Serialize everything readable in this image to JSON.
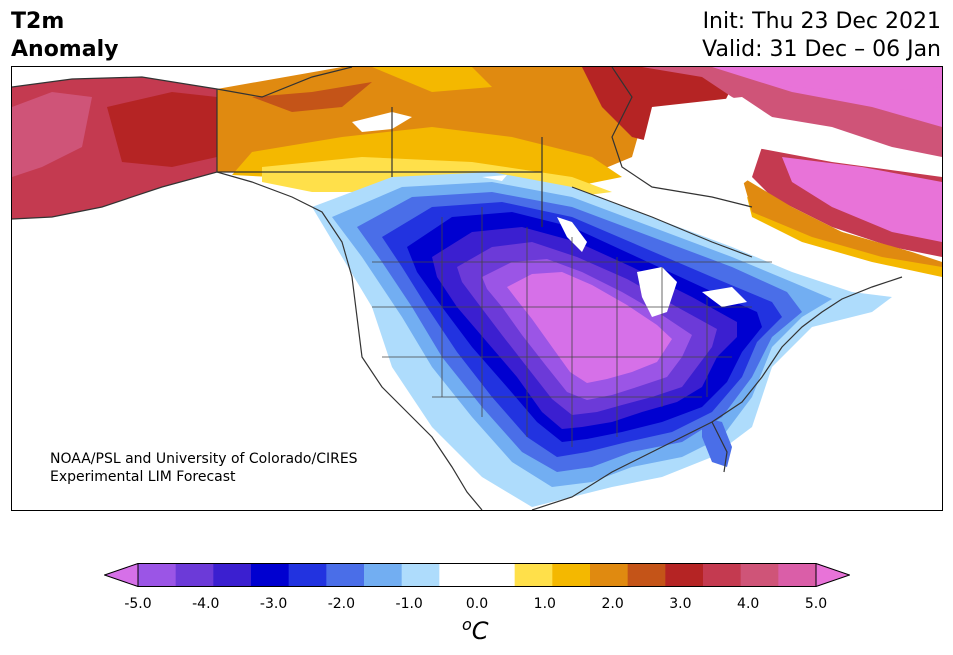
{
  "header": {
    "title_line1": "T2m",
    "title_line2": "Anomaly",
    "init": "Init: Thu 23 Dec 2021",
    "valid": "Valid: 31 Dec – 06 Jan"
  },
  "credit": {
    "line1": "NOAA/PSL and University of Colorado/CIRES",
    "line2": "Experimental LIM Forecast"
  },
  "colorbar": {
    "colors": [
      "#d670e8",
      "#9b55e6",
      "#6c3ad8",
      "#3b1fd0",
      "#0000d0",
      "#2233e0",
      "#4a6ee8",
      "#72aef2",
      "#aedcfc",
      "#ffffff",
      "#ffffff",
      "#ffe04a",
      "#f4b800",
      "#e08a10",
      "#c45418",
      "#b52424",
      "#c43a50",
      "#cf5478",
      "#da5ea8",
      "#e873d8"
    ],
    "ticks": [
      "-5.0",
      "-4.0",
      "-3.0",
      "-2.0",
      "-1.0",
      "0.0",
      "1.0",
      "2.0",
      "3.0",
      "4.0",
      "5.0"
    ],
    "unit_base": "C",
    "unit_super": "o"
  }
}
